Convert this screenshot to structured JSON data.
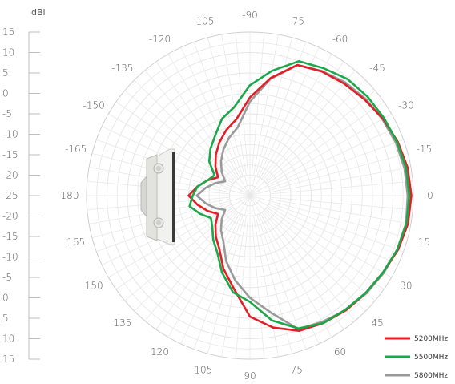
{
  "chart_data": {
    "type": "polar-line",
    "unit_label": "dBi",
    "radial_scale_labels": [
      "15",
      "10",
      "5",
      "0",
      "-5",
      "-10",
      "-15",
      "-20",
      "-25",
      "-20",
      "-15",
      "-10",
      "-5",
      "0",
      "5",
      "10",
      "15"
    ],
    "radial_range": [
      -25,
      15
    ],
    "angle_labels": [
      "0",
      "-15",
      "-30",
      "-45",
      "-60",
      "-75",
      "-90",
      "-105",
      "-120",
      "-135",
      "-150",
      "-165",
      "180",
      "165",
      "150",
      "135",
      "120",
      "105",
      "90",
      "75",
      "60",
      "45",
      "30",
      "15"
    ],
    "grid": true,
    "legend_position": "bottom-right",
    "colors": {
      "5200MHz": "#e41e26",
      "5500MHz": "#1aa84a",
      "5800MHz": "#9a9a9a"
    },
    "series": [
      {
        "name": "5200MHz",
        "angles": [
          0,
          -10,
          -20,
          -30,
          -40,
          -50,
          -60,
          -70,
          -80,
          -90,
          -100,
          -110,
          -120,
          -130,
          -140,
          -150,
          -160,
          -170,
          180,
          170,
          160,
          150,
          140,
          130,
          120,
          110,
          100,
          90,
          80,
          70,
          60,
          50,
          40,
          30,
          20,
          10
        ],
        "values": [
          14.5,
          14.2,
          13.5,
          12.6,
          11.6,
          10.8,
          10.1,
          9.0,
          4.2,
          -1.0,
          -6.0,
          -8.0,
          -10.0,
          -12.0,
          -14.0,
          -16.0,
          -14.0,
          -12.0,
          -10.0,
          -12.0,
          -14.0,
          -16.0,
          -14.0,
          -12.0,
          -10.0,
          -6.0,
          -2.0,
          4.6,
          7.8,
          10.2,
          11.0,
          11.6,
          12.0,
          12.6,
          13.6,
          14.3
        ]
      },
      {
        "name": "5500MHz",
        "angles": [
          0,
          -10,
          -20,
          -30,
          -40,
          -50,
          -60,
          -70,
          -80,
          -90,
          -100,
          -110,
          -120,
          -130,
          -140,
          -150,
          -160,
          -170,
          180,
          170,
          160,
          150,
          140,
          130,
          120,
          110,
          100,
          90,
          80,
          70,
          60,
          50,
          40,
          30,
          20,
          10
        ],
        "values": [
          14.0,
          13.8,
          13.3,
          12.9,
          12.6,
          12.2,
          11.0,
          10.0,
          6.0,
          2.0,
          -3.0,
          -5.0,
          -8.0,
          -10.0,
          -12.0,
          -15.0,
          -14.0,
          -12.0,
          -11.0,
          -10.0,
          -12.0,
          -14.0,
          -13.0,
          -11.0,
          -9.0,
          -5.0,
          -1.0,
          1.0,
          6.0,
          9.6,
          11.0,
          11.4,
          12.0,
          12.6,
          13.4,
          13.9
        ]
      },
      {
        "name": "5800MHz",
        "angles": [
          0,
          -10,
          -20,
          -30,
          -40,
          -50,
          -60,
          -70,
          -80,
          -90,
          -100,
          -110,
          -120,
          -130,
          -140,
          -150,
          -160,
          -170,
          180,
          170,
          160,
          150,
          140,
          130,
          120,
          110,
          100,
          90,
          80,
          70,
          60,
          50,
          40,
          30,
          20,
          10
        ],
        "values": [
          13.6,
          13.4,
          13.0,
          12.4,
          11.9,
          11.2,
          10.2,
          9.0,
          4.0,
          -2.0,
          -8.0,
          -10.0,
          -12.0,
          -14.0,
          -16.0,
          -18.0,
          -16.0,
          -14.0,
          -12.0,
          -14.0,
          -16.0,
          -18.0,
          -16.0,
          -14.0,
          -12.0,
          -8.0,
          -4.0,
          0.0,
          4.0,
          9.8,
          10.6,
          11.6,
          12.2,
          12.8,
          13.4,
          13.8
        ]
      }
    ]
  }
}
